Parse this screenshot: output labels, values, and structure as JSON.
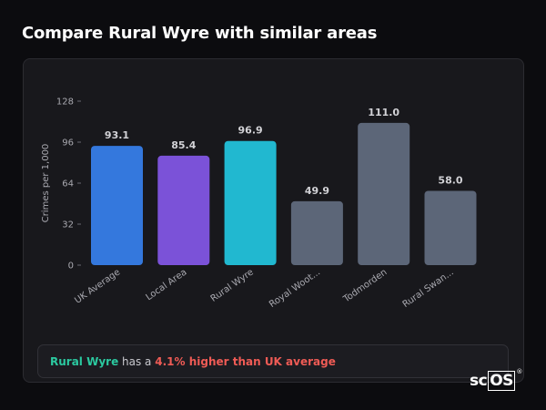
{
  "page": {
    "title": "Compare Rural Wyre with similar areas"
  },
  "chart_data": {
    "type": "bar",
    "title": "",
    "ylabel": "Crimes per 1,000",
    "ylim": [
      0,
      128
    ],
    "yticks": [
      0,
      32,
      64,
      96,
      128
    ],
    "grid": false,
    "categories": [
      "UK Average",
      "Local Area",
      "Rural Wyre",
      "Royal Woot...",
      "Todmorden",
      "Rural Swan..."
    ],
    "values": [
      93.1,
      85.4,
      96.9,
      49.9,
      111.0,
      58.0
    ],
    "value_labels": [
      "93.1",
      "85.4",
      "96.9",
      "49.9",
      "111.0",
      "58.0"
    ],
    "colors": [
      "#3478dd",
      "#7b52d8",
      "#21b8d0",
      "#5c6678",
      "#5c6678",
      "#5c6678"
    ]
  },
  "summary": {
    "area_name": "Rural Wyre",
    "text_mid": " has a ",
    "difference": "4.1% higher than UK average"
  },
  "brand": {
    "prefix": "sc",
    "boxed": "OS",
    "mark": "®"
  }
}
